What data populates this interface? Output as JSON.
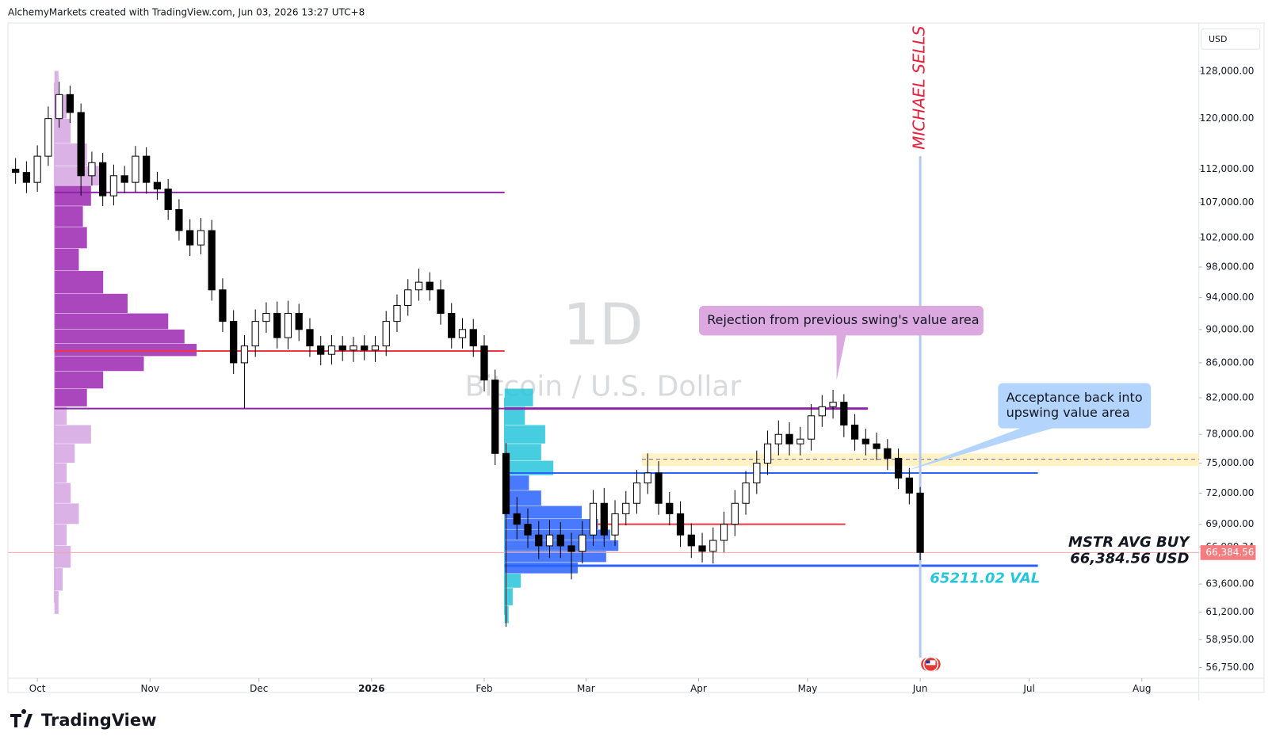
{
  "header": {
    "text": "AlchemyMarkets created with TradingView.com, Jun 03, 2026 13:27 UTC+8"
  },
  "footer": {
    "brand": "TradingView"
  },
  "chart_data": {
    "type": "candlestick",
    "watermark": {
      "interval": "1D",
      "symbol": "Bitcoin / U.S. Dollar"
    },
    "currency": "USD",
    "log_scale": true,
    "ylim": [
      55930,
      136400
    ],
    "yticks": [
      {
        "value": 128000,
        "label": "128,000.00"
      },
      {
        "value": 120000,
        "label": "120,000.00"
      },
      {
        "value": 112000,
        "label": "112,000.00"
      },
      {
        "value": 107000,
        "label": "107,000.00"
      },
      {
        "value": 102000,
        "label": "102,000.00"
      },
      {
        "value": 98000,
        "label": "98,000.00"
      },
      {
        "value": 94000,
        "label": "94,000.00"
      },
      {
        "value": 90000,
        "label": "90,000.00"
      },
      {
        "value": 86000,
        "label": "86,000.00"
      },
      {
        "value": 82000,
        "label": "82,000.00"
      },
      {
        "value": 78000,
        "label": "78,000.00"
      },
      {
        "value": 75000,
        "label": "75,000.00"
      },
      {
        "value": 72000,
        "label": "72,000.00"
      },
      {
        "value": 69000,
        "label": "69,000.00"
      },
      {
        "value": 66900,
        "label": "66,900.34"
      },
      {
        "value": 63600,
        "label": "63,600.00"
      },
      {
        "value": 61200,
        "label": "61,200.00"
      },
      {
        "value": 58950,
        "label": "58,950.00"
      },
      {
        "value": 56750,
        "label": "56,750.00"
      }
    ],
    "xlim": [
      -7.6,
      319.7
    ],
    "xticks": [
      {
        "value": 0,
        "label": "Oct"
      },
      {
        "value": 31,
        "label": "Nov"
      },
      {
        "value": 61,
        "label": "Dec"
      },
      {
        "value": 92,
        "label": "2026"
      },
      {
        "value": 123,
        "label": "Feb"
      },
      {
        "value": 151,
        "label": "Mar"
      },
      {
        "value": 182,
        "label": "Apr"
      },
      {
        "value": 212,
        "label": "May"
      },
      {
        "value": 243,
        "label": "Jun"
      },
      {
        "value": 273,
        "label": "Jul"
      },
      {
        "value": 304,
        "label": "Aug"
      }
    ],
    "x": [
      -6,
      -3,
      0,
      3,
      6,
      9,
      12,
      15,
      18,
      21,
      24,
      27,
      30,
      33,
      36,
      39,
      42,
      45,
      48,
      51,
      54,
      57,
      60,
      63,
      66,
      69,
      72,
      75,
      78,
      81,
      84,
      87,
      90,
      93,
      96,
      99,
      102,
      105,
      108,
      111,
      114,
      117,
      120,
      123,
      126,
      129,
      132,
      135,
      138,
      141,
      144,
      147,
      150,
      153,
      156,
      159,
      162,
      165,
      168,
      171,
      174,
      177,
      180,
      183,
      186,
      189,
      192,
      195,
      198,
      201,
      204,
      207,
      210,
      213,
      216,
      219,
      222,
      225,
      228,
      231,
      234,
      237,
      240,
      243
    ],
    "open": [
      112000,
      111500,
      110000,
      114000,
      120000,
      124000,
      121000,
      111000,
      113000,
      108000,
      111000,
      110000,
      114000,
      110000,
      109000,
      106000,
      103000,
      101000,
      103000,
      95000,
      91000,
      86000,
      88000,
      91000,
      92000,
      89000,
      92000,
      90000,
      88000,
      87000,
      88000,
      87500,
      88000,
      87500,
      88000,
      91000,
      93000,
      95000,
      96000,
      95000,
      92000,
      89000,
      90000,
      88000,
      84000,
      76000,
      70000,
      69000,
      68000,
      67000,
      68000,
      67000,
      66500,
      68000,
      71000,
      68000,
      70000,
      71000,
      73000,
      74000,
      71000,
      70000,
      68000,
      67000,
      66500,
      67500,
      69000,
      71000,
      73000,
      75000,
      77000,
      78000,
      77000,
      77500,
      80000,
      81000,
      81500,
      79000,
      77500,
      77000,
      76500,
      75500,
      73500,
      72000
    ],
    "high": [
      113700,
      113200,
      115700,
      122000,
      126200,
      125500,
      122500,
      114700,
      114500,
      112700,
      112500,
      115600,
      115400,
      111600,
      110500,
      107500,
      104600,
      104800,
      104500,
      96500,
      92400,
      89300,
      92500,
      93400,
      93500,
      93600,
      93200,
      91400,
      89200,
      89300,
      89200,
      89100,
      89300,
      89200,
      92300,
      94400,
      96400,
      97800,
      97300,
      96300,
      93300,
      91400,
      91300,
      89300,
      85200,
      77100,
      71600,
      70500,
      69300,
      69400,
      69200,
      68200,
      69300,
      72300,
      72500,
      71300,
      72200,
      74300,
      76000,
      75200,
      72100,
      71200,
      69100,
      68200,
      68700,
      70200,
      72300,
      74200,
      76300,
      78400,
      79500,
      79300,
      78800,
      81300,
      82300,
      82900,
      82400,
      80200,
      78600,
      78200,
      77500,
      76500,
      74500,
      72600
    ],
    "low": [
      109800,
      108400,
      108600,
      112500,
      118500,
      119300,
      108000,
      109500,
      106500,
      106600,
      108400,
      108500,
      108300,
      107400,
      104500,
      101600,
      99500,
      99700,
      93600,
      89700,
      84700,
      80800,
      86700,
      89600,
      87700,
      87600,
      88600,
      86700,
      85700,
      85800,
      86200,
      86100,
      86300,
      86100,
      86800,
      89700,
      91700,
      93600,
      93600,
      90600,
      87700,
      87700,
      86700,
      82700,
      74800,
      60000,
      67600,
      66800,
      65800,
      65900,
      65900,
      64000,
      65400,
      67000,
      66900,
      67000,
      68900,
      70000,
      71900,
      69900,
      68900,
      66900,
      65900,
      65500,
      65400,
      66400,
      67900,
      69900,
      71900,
      73800,
      75800,
      75800,
      75800,
      76300,
      78800,
      79700,
      77700,
      76300,
      75800,
      75300,
      74300,
      72400,
      70900,
      65700
    ],
    "close": [
      111500,
      110000,
      114000,
      120000,
      124000,
      121000,
      111000,
      113000,
      108000,
      111000,
      110000,
      114000,
      110000,
      109000,
      106000,
      103000,
      101000,
      103000,
      95000,
      91000,
      86000,
      88000,
      91000,
      92000,
      89000,
      92000,
      90000,
      88000,
      87000,
      88000,
      87500,
      88000,
      87500,
      88000,
      91000,
      93000,
      95000,
      96000,
      95000,
      92000,
      89000,
      90000,
      88000,
      84000,
      76000,
      70000,
      69000,
      68000,
      67000,
      68000,
      67000,
      66500,
      68000,
      71000,
      68000,
      70000,
      71000,
      73000,
      74000,
      71000,
      70000,
      68000,
      67000,
      66500,
      67500,
      69000,
      71000,
      73000,
      75000,
      77000,
      78000,
      77000,
      77500,
      80000,
      81000,
      81500,
      79000,
      77500,
      77000,
      76500,
      75500,
      73500,
      72000,
      66400
    ],
    "candle_colors": {
      "up": "#ffffff",
      "down": "#000000",
      "border": "#000000"
    },
    "volume_profiles": [
      {
        "start": 4.7,
        "colors": [
          "#d4a5e0",
          "#9c27b0"
        ],
        "prices": [
          126000,
          122000,
          118000,
          114000,
          111000,
          108000,
          105000,
          102000,
          99000,
          96000,
          93000,
          91000,
          89000,
          87500,
          86000,
          84000,
          82000,
          80000,
          78000,
          76000,
          74000,
          72000,
          70000,
          68000,
          66000,
          64000,
          62000
        ],
        "volumes": [
          5,
          15,
          20,
          40,
          55,
          45,
          35,
          40,
          30,
          60,
          90,
          140,
          160,
          175,
          110,
          60,
          40,
          15,
          45,
          25,
          15,
          20,
          30,
          15,
          20,
          10,
          5
        ],
        "in_value_area": [
          false,
          false,
          false,
          false,
          false,
          true,
          true,
          true,
          true,
          true,
          true,
          true,
          true,
          true,
          true,
          true,
          true,
          false,
          false,
          false,
          false,
          false,
          false,
          false,
          false,
          false,
          false
        ]
      },
      {
        "start": 128.6,
        "colors": [
          "#26c6da",
          "#2962ff"
        ],
        "prices": [
          82000,
          80000,
          78000,
          76000,
          74500,
          73000,
          71500,
          70000,
          69000,
          68000,
          67000,
          66000,
          65000,
          64000,
          62500,
          61000
        ],
        "volumes": [
          35,
          25,
          50,
          45,
          60,
          30,
          45,
          95,
          115,
          130,
          140,
          125,
          90,
          20,
          10,
          5
        ],
        "in_value_area": [
          false,
          false,
          false,
          false,
          false,
          true,
          true,
          true,
          true,
          true,
          true,
          true,
          true,
          false,
          false,
          false
        ]
      }
    ],
    "levels": [
      {
        "value": 108500,
        "start": 4.7,
        "end": 128.6,
        "color": "#8e24aa",
        "width": 2
      },
      {
        "value": 87400,
        "start": 4.7,
        "end": 128.6,
        "color": "#f23645",
        "width": 2
      },
      {
        "value": 80800,
        "start": 4.7,
        "end": 128.6,
        "color": "#8e24aa",
        "width": 2
      },
      {
        "value": 80800,
        "start": 128.6,
        "end": 228.6,
        "color": "#8e24aa",
        "width": 3
      },
      {
        "value": 74000,
        "start": 128.6,
        "end": 275.4,
        "color": "#2962ff",
        "width": 2
      },
      {
        "value": 69000,
        "start": 154.1,
        "end": 222.4,
        "color": "#f23645",
        "width": 2
      },
      {
        "value": 65211.02,
        "start": 128.6,
        "end": 275.4,
        "color": "#2962ff",
        "width": 3,
        "label": "65211.02 VAL"
      },
      {
        "value": 66384.56,
        "color": "#f7a5a8",
        "width": 1,
        "note": "MSTR AVG BUY",
        "label": "66,384.56 USD",
        "axis_label": "66,384.56"
      }
    ],
    "zone": {
      "low": 74700,
      "high": 76000,
      "mid": 75400,
      "start": 166.4,
      "color": "#fff3c4"
    },
    "event": {
      "x": 243,
      "label": "MICHAEL SELLS",
      "color": "#b3c7f0",
      "text_color": "#e91e3a"
    },
    "annotations": [
      {
        "text": "Rejection from previous swing's value area",
        "x": 220,
        "y": 84000,
        "color": "#dba9e0"
      },
      {
        "text": [
          "Acceptance back into",
          "upswing value area"
        ],
        "x": 239,
        "y": 74200,
        "color": "#b3d4fc"
      }
    ]
  }
}
